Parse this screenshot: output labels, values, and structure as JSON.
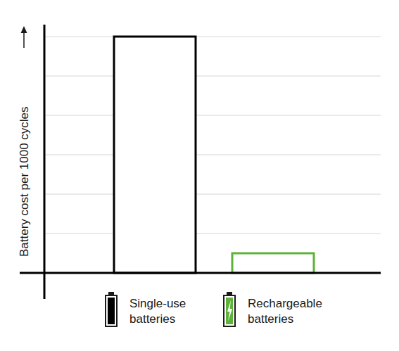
{
  "chart_data": {
    "type": "bar",
    "y_label": "Battery cost per 1000 cycles",
    "categories": [
      "Single-use batteries",
      "Rechargeable batteries"
    ],
    "values": [
      6,
      0.5
    ],
    "colors": [
      "#000000",
      "#5db33a"
    ],
    "ylim": [
      0,
      6.25
    ],
    "yticks": [
      0,
      1,
      2,
      3,
      4,
      5,
      6
    ],
    "grid": true,
    "tick_labels": false
  }
}
